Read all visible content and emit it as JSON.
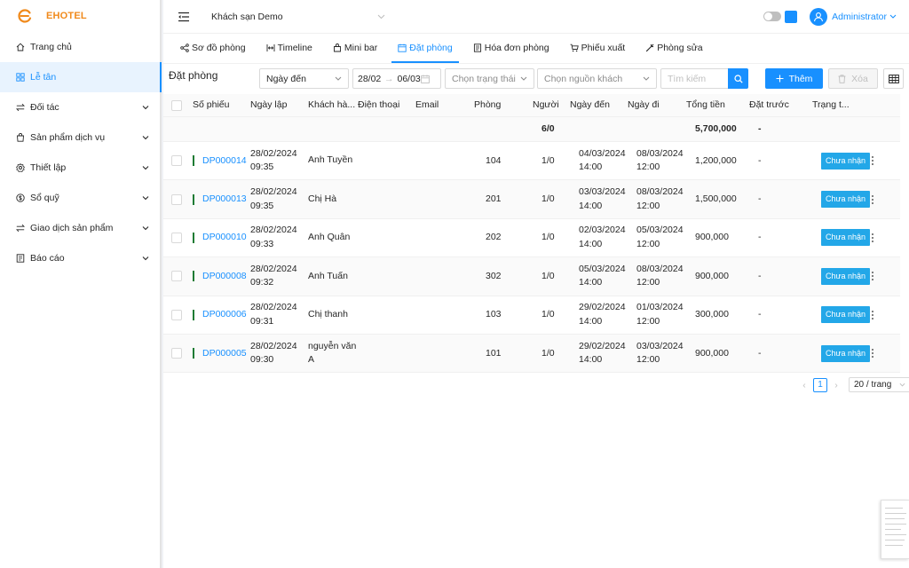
{
  "app": {
    "brand": "EHOTEL",
    "accent": "#1890ff",
    "brand_color": "#f08a1c"
  },
  "header": {
    "hotel": "Khách sạn Demo",
    "user": "Administrator"
  },
  "sidebar": {
    "items": [
      {
        "label": "Trang chủ",
        "icon": "home-icon",
        "expandable": false,
        "active": false
      },
      {
        "label": "Lễ tân",
        "icon": "grid-icon",
        "expandable": false,
        "active": true
      },
      {
        "label": "Đối tác",
        "icon": "swap-icon",
        "expandable": true,
        "active": false
      },
      {
        "label": "Sản phẩm dịch vụ",
        "icon": "bag-icon",
        "expandable": true,
        "active": false
      },
      {
        "label": "Thiết lập",
        "icon": "gear-icon",
        "expandable": true,
        "active": false
      },
      {
        "label": "Sổ quỹ",
        "icon": "coin-icon",
        "expandable": true,
        "active": false
      },
      {
        "label": "Giao dịch sản phẩm",
        "icon": "swap-icon",
        "expandable": true,
        "active": false
      },
      {
        "label": "Báo cáo",
        "icon": "report-icon",
        "expandable": true,
        "active": false
      }
    ]
  },
  "tabs": [
    {
      "label": "Sơ đồ phòng",
      "icon": "share-icon",
      "active": false
    },
    {
      "label": "Timeline",
      "icon": "timeline-icon",
      "active": false
    },
    {
      "label": "Mini bar",
      "icon": "shop-icon",
      "active": false
    },
    {
      "label": "Đặt phòng",
      "icon": "calendar-icon",
      "active": true
    },
    {
      "label": "Hóa đơn phòng",
      "icon": "invoice-icon",
      "active": false
    },
    {
      "label": "Phiếu xuất",
      "icon": "cart-icon",
      "active": false
    },
    {
      "label": "Phòng sửa",
      "icon": "tool-icon",
      "active": false
    }
  ],
  "toolbar": {
    "title": "Đặt phòng",
    "date_type": "Ngày đến",
    "date_from": "28/02",
    "date_to": "06/03",
    "status_placeholder": "Chọn trạng thái",
    "source_placeholder": "Chọn nguồn khách",
    "search_placeholder": "Tìm kiếm",
    "add_label": "Thêm",
    "delete_label": "Xóa"
  },
  "table": {
    "columns": [
      "Số phiếu",
      "Ngày lập",
      "Khách hàng",
      "Điện thoại",
      "Email",
      "Phòng",
      "Người",
      "Ngày đến",
      "Ngày đi",
      "Tổng tiền",
      "Đặt trước",
      "Trạng thái"
    ],
    "summary": {
      "people": "6/0",
      "total": "5,700,000",
      "deposit": "-"
    },
    "rows": [
      {
        "code": "DP000014",
        "created": "28/02/2024 09:35",
        "guest": "Anh Tuyền",
        "phone": "",
        "email": "",
        "room": "104",
        "people": "1/0",
        "checkin": "04/03/2024 14:00",
        "checkout": "08/03/2024 12:00",
        "total": "1,200,000",
        "deposit": "-",
        "status": "Chưa nhận"
      },
      {
        "code": "DP000013",
        "created": "28/02/2024 09:35",
        "guest": "Chị Hà",
        "phone": "",
        "email": "",
        "room": "201",
        "people": "1/0",
        "checkin": "03/03/2024 14:00",
        "checkout": "08/03/2024 12:00",
        "total": "1,500,000",
        "deposit": "-",
        "status": "Chưa nhận"
      },
      {
        "code": "DP000010",
        "created": "28/02/2024 09:33",
        "guest": "Anh Quân",
        "phone": "",
        "email": "",
        "room": "202",
        "people": "1/0",
        "checkin": "02/03/2024 14:00",
        "checkout": "05/03/2024 12:00",
        "total": "900,000",
        "deposit": "-",
        "status": "Chưa nhận"
      },
      {
        "code": "DP000008",
        "created": "28/02/2024 09:32",
        "guest": "Anh Tuấn",
        "phone": "",
        "email": "",
        "room": "302",
        "people": "1/0",
        "checkin": "05/03/2024 14:00",
        "checkout": "08/03/2024 12:00",
        "total": "900,000",
        "deposit": "-",
        "status": "Chưa nhận"
      },
      {
        "code": "DP000006",
        "created": "28/02/2024 09:31",
        "guest": "Chị thanh",
        "phone": "",
        "email": "",
        "room": "103",
        "people": "1/0",
        "checkin": "29/02/2024 14:00",
        "checkout": "01/03/2024 12:00",
        "total": "300,000",
        "deposit": "-",
        "status": "Chưa nhận"
      },
      {
        "code": "DP000005",
        "created": "28/02/2024 09:30",
        "guest": "nguyễn văn A",
        "phone": "",
        "email": "",
        "room": "101",
        "people": "1/0",
        "checkin": "29/02/2024 14:00",
        "checkout": "03/03/2024 12:00",
        "total": "900,000",
        "deposit": "-",
        "status": "Chưa nhận"
      }
    ]
  },
  "pagination": {
    "current": "1",
    "page_size": "20 / trang"
  }
}
